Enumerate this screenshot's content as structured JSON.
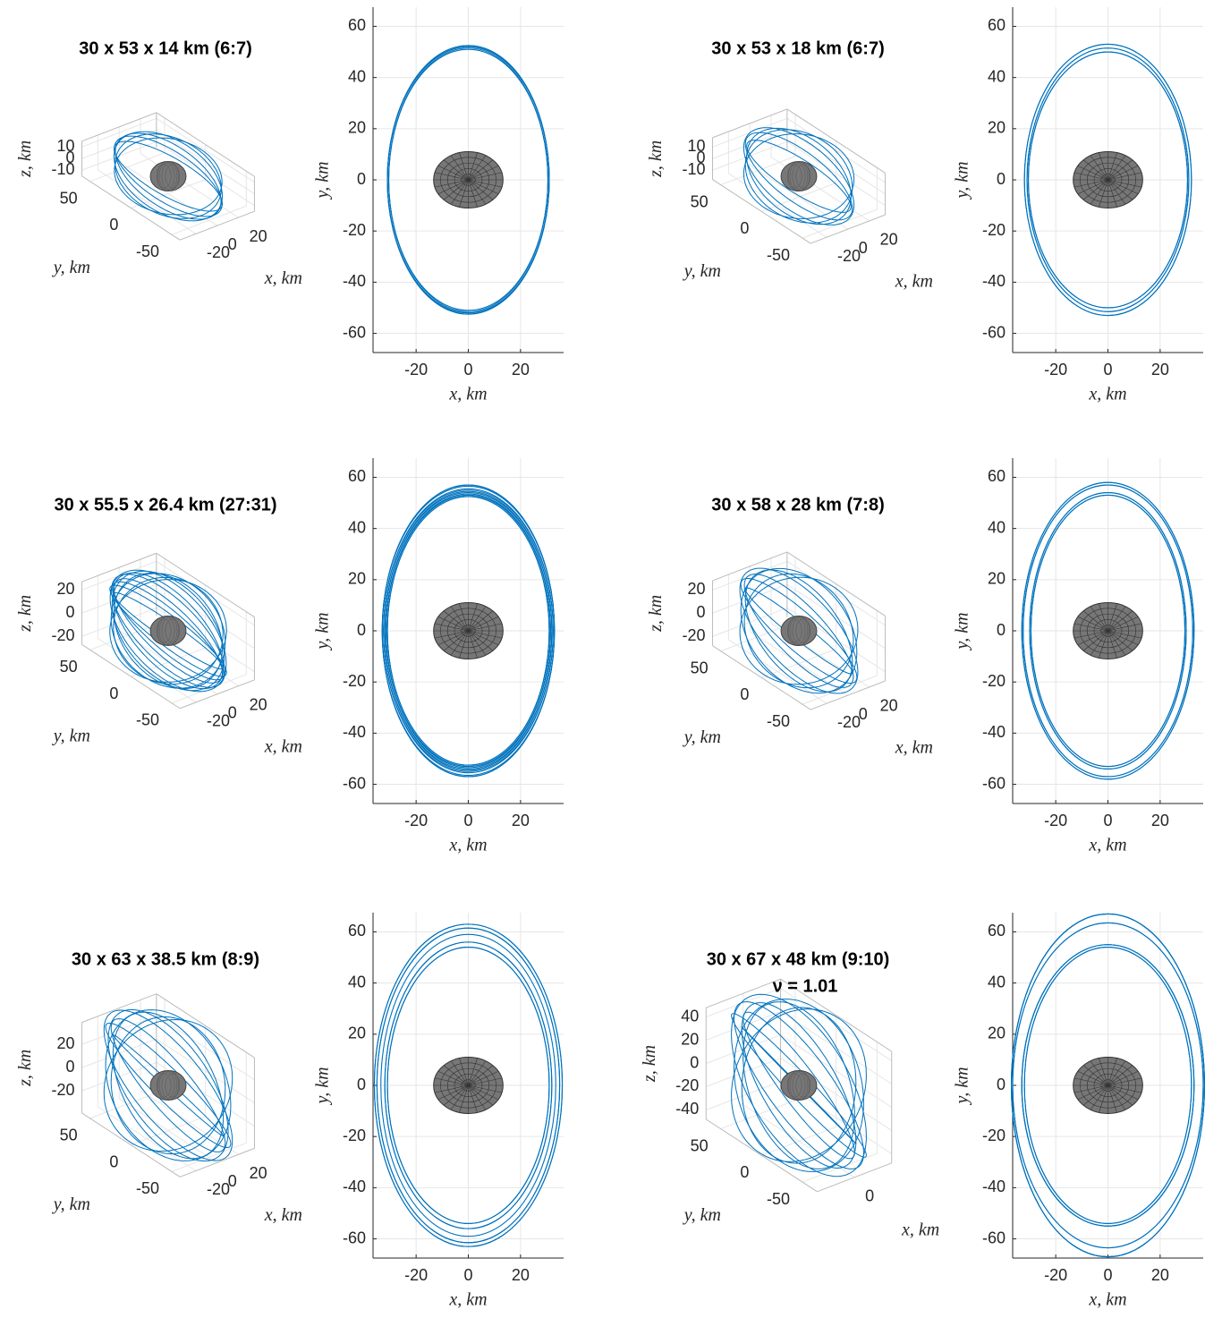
{
  "chart_data": [
    {
      "type": "orbit",
      "title": "30 x 53 x 14 km (6:7)",
      "orbit_color": "#0072bd",
      "body": {
        "a": 13.3,
        "b": 11,
        "color": "#777777"
      },
      "view3d": {
        "xlabel": "x, km",
        "ylabel": "y, km",
        "zlabel": "z, km",
        "xlim": [
          -35,
          35
        ],
        "ylim": [
          -60,
          60
        ],
        "zlim": [
          -15,
          15
        ],
        "xticks": [
          -20,
          0,
          20
        ],
        "yticks": [
          -50,
          0,
          50
        ],
        "zticks": [
          -10,
          0,
          10
        ]
      },
      "view2d": {
        "xlabel": "x, km",
        "ylabel": "y, km",
        "xlim": [
          -36.5,
          36.5
        ],
        "ylim": [
          -67.5,
          67.5
        ],
        "xticks": [
          -20,
          0,
          20
        ],
        "yticks": [
          -60,
          -40,
          -20,
          0,
          20,
          40,
          60
        ],
        "grid": true
      },
      "orbits": [
        {
          "a": 31,
          "b": 52,
          "zc": 12,
          "zs": 0
        },
        {
          "a": 30.5,
          "b": 51.5,
          "zc": 10.4,
          "zs": 6
        },
        {
          "a": 31,
          "b": 52.5,
          "zc": 6,
          "zs": 10.4
        },
        {
          "a": 30.5,
          "b": 51,
          "zc": 0,
          "zs": 12
        },
        {
          "a": 31,
          "b": 52,
          "zc": -6,
          "zs": 10.4
        },
        {
          "a": 31,
          "b": 52.5,
          "zc": -10.4,
          "zs": 6
        }
      ]
    },
    {
      "type": "orbit",
      "title": "30 x 53 x 18 km (6:7)",
      "orbit_color": "#0072bd",
      "body": {
        "a": 13.3,
        "b": 11,
        "color": "#777777"
      },
      "view3d": {
        "xlabel": "x, km",
        "ylabel": "y, km",
        "zlabel": "z, km",
        "xlim": [
          -35,
          35
        ],
        "ylim": [
          -60,
          60
        ],
        "zlim": [
          -18,
          18
        ],
        "xticks": [
          -20,
          0,
          20
        ],
        "yticks": [
          -50,
          0,
          50
        ],
        "zticks": [
          -10,
          0,
          10
        ]
      },
      "view2d": {
        "xlabel": "x, km",
        "ylabel": "y, km",
        "xlim": [
          -36.5,
          36.5
        ],
        "ylim": [
          -67.5,
          67.5
        ],
        "xticks": [
          -20,
          0,
          20
        ],
        "yticks": [
          -60,
          -40,
          -20,
          0,
          20,
          40,
          60
        ],
        "grid": true
      },
      "orbits": [
        {
          "a": 32,
          "b": 53,
          "zc": 16,
          "zs": 0
        },
        {
          "a": 31,
          "b": 51.5,
          "zc": 13.9,
          "zs": 8
        },
        {
          "a": 30.5,
          "b": 50,
          "zc": 8,
          "zs": 13.9
        },
        {
          "a": 32,
          "b": 53,
          "zc": 0,
          "zs": 16
        },
        {
          "a": 31,
          "b": 51.5,
          "zc": -8,
          "zs": 13.9
        },
        {
          "a": 30.5,
          "b": 50,
          "zc": -13.9,
          "zs": 8
        }
      ]
    },
    {
      "type": "orbit",
      "title": "30 x 55.5 x 26.4 km (27:31)",
      "orbit_color": "#0072bd",
      "body": {
        "a": 13.3,
        "b": 11,
        "color": "#777777"
      },
      "view3d": {
        "xlabel": "x, km",
        "ylabel": "y, km",
        "zlabel": "z, km",
        "xlim": [
          -35,
          35
        ],
        "ylim": [
          -60,
          60
        ],
        "zlim": [
          -27,
          27
        ],
        "xticks": [
          -20,
          0,
          20
        ],
        "yticks": [
          -50,
          0,
          50
        ],
        "zticks": [
          -20,
          0,
          20
        ]
      },
      "view2d": {
        "xlabel": "x, km",
        "ylabel": "y, km",
        "xlim": [
          -36.5,
          36.5
        ],
        "ylim": [
          -67.5,
          67.5
        ],
        "xticks": [
          -20,
          0,
          20
        ],
        "yticks": [
          -60,
          -40,
          -20,
          0,
          20,
          40,
          60
        ],
        "grid": true
      },
      "orbits": [
        {
          "a": 33,
          "b": 57,
          "zc": 24,
          "zs": 0
        },
        {
          "a": 31.5,
          "b": 53,
          "zc": 23.2,
          "zs": 6.2
        },
        {
          "a": 32.5,
          "b": 55.5,
          "zc": 20.8,
          "zs": 12
        },
        {
          "a": 31,
          "b": 52.5,
          "zc": 17,
          "zs": 17
        },
        {
          "a": 32,
          "b": 54.5,
          "zc": 12,
          "zs": 20.8
        },
        {
          "a": 33,
          "b": 56.5,
          "zc": 6.2,
          "zs": 23.2
        },
        {
          "a": 31.5,
          "b": 53.5,
          "zc": 0,
          "zs": 24
        },
        {
          "a": 32.5,
          "b": 55,
          "zc": -6.2,
          "zs": 23.2
        },
        {
          "a": 31,
          "b": 52.5,
          "zc": -12,
          "zs": 20.8
        },
        {
          "a": 32,
          "b": 54,
          "zc": -17,
          "zs": 17
        },
        {
          "a": 33,
          "b": 57,
          "zc": -20.8,
          "zs": 12
        },
        {
          "a": 31.5,
          "b": 53,
          "zc": -23.2,
          "zs": 6.2
        }
      ]
    },
    {
      "type": "orbit",
      "title": "30 x 58 x 28 km (7:8)",
      "orbit_color": "#0072bd",
      "body": {
        "a": 13.3,
        "b": 11,
        "color": "#777777"
      },
      "view3d": {
        "xlabel": "x, km",
        "ylabel": "y, km",
        "zlabel": "z, km",
        "xlim": [
          -35,
          35
        ],
        "ylim": [
          -60,
          60
        ],
        "zlim": [
          -28,
          28
        ],
        "xticks": [
          -20,
          0,
          20
        ],
        "yticks": [
          -50,
          0,
          50
        ],
        "zticks": [
          -20,
          0,
          20
        ]
      },
      "view2d": {
        "xlabel": "x, km",
        "ylabel": "y, km",
        "xlim": [
          -36.5,
          36.5
        ],
        "ylim": [
          -67.5,
          67.5
        ],
        "xticks": [
          -20,
          0,
          20
        ],
        "yticks": [
          -60,
          -40,
          -20,
          0,
          20,
          40,
          60
        ],
        "grid": true
      },
      "orbits": [
        {
          "a": 33,
          "b": 58,
          "zc": 26,
          "zs": 0
        },
        {
          "a": 30,
          "b": 54,
          "zc": 24,
          "zs": 10
        },
        {
          "a": 32.5,
          "b": 57,
          "zc": 18.4,
          "zs": 18.4
        },
        {
          "a": 29.5,
          "b": 53,
          "zc": 10,
          "zs": 24
        },
        {
          "a": 33,
          "b": 58,
          "zc": 0,
          "zs": 26
        },
        {
          "a": 30,
          "b": 54,
          "zc": -10,
          "zs": 24
        },
        {
          "a": 32.5,
          "b": 57,
          "zc": -18.4,
          "zs": 18.4
        },
        {
          "a": 29.5,
          "b": 53,
          "zc": -24,
          "zs": 10
        }
      ]
    },
    {
      "type": "orbit",
      "title": "30 x 63 x 38.5 km (8:9)",
      "orbit_color": "#0072bd",
      "body": {
        "a": 13.3,
        "b": 11,
        "color": "#777777"
      },
      "view3d": {
        "xlabel": "x, km",
        "ylabel": "y, km",
        "zlabel": "z, km",
        "xlim": [
          -35,
          35
        ],
        "ylim": [
          -60,
          60
        ],
        "zlim": [
          -39,
          39
        ],
        "xticks": [
          -20,
          0,
          20
        ],
        "yticks": [
          -50,
          0,
          50
        ],
        "zticks": [
          -20,
          0,
          20
        ]
      },
      "view2d": {
        "xlabel": "x, km",
        "ylabel": "y, km",
        "xlim": [
          -36.5,
          36.5
        ],
        "ylim": [
          -67.5,
          67.5
        ],
        "xticks": [
          -20,
          0,
          20
        ],
        "yticks": [
          -60,
          -40,
          -20,
          0,
          20,
          40,
          60
        ],
        "grid": true
      },
      "orbits": [
        {
          "a": 36,
          "b": 63,
          "zc": 36,
          "zs": 0
        },
        {
          "a": 32,
          "b": 56,
          "zc": 33.8,
          "zs": 12.3
        },
        {
          "a": 35,
          "b": 61.5,
          "zc": 27.6,
          "zs": 23.1
        },
        {
          "a": 31,
          "b": 54,
          "zc": 18,
          "zs": 31.2
        },
        {
          "a": 33.5,
          "b": 59,
          "zc": 6.3,
          "zs": 35.5
        },
        {
          "a": 36,
          "b": 63,
          "zc": -6.3,
          "zs": 35.5
        },
        {
          "a": 32,
          "b": 56,
          "zc": -18,
          "zs": 31.2
        },
        {
          "a": 35,
          "b": 61.5,
          "zc": -27.6,
          "zs": 23.1
        },
        {
          "a": 31,
          "b": 54,
          "zc": -33.8,
          "zs": 12.3
        }
      ]
    },
    {
      "type": "orbit",
      "title": "30 x 67 x 48 km (9:10)",
      "subtitle": "ν = 1.01",
      "orbit_color": "#0072bd",
      "body": {
        "a": 13.3,
        "b": 11,
        "color": "#777777"
      },
      "view3d": {
        "xlabel": "x, km",
        "ylabel": "y, km",
        "zlabel": "z, km",
        "xlim": [
          -35,
          35
        ],
        "ylim": [
          -68,
          68
        ],
        "zlim": [
          -48,
          48
        ],
        "xticks": [
          0
        ],
        "yticks": [
          -50,
          0,
          50
        ],
        "zticks": [
          -40,
          -20,
          0,
          20,
          40
        ]
      },
      "view2d": {
        "xlabel": "x, km",
        "ylabel": "y, km",
        "xlim": [
          -36.5,
          36.5
        ],
        "ylim": [
          -67.5,
          67.5
        ],
        "xticks": [
          -20,
          0,
          20
        ],
        "yticks": [
          -60,
          -40,
          -20,
          0,
          20,
          40,
          60
        ],
        "grid": true
      },
      "orbits": [
        {
          "a": 37,
          "b": 67,
          "zc": 45,
          "zs": 0
        },
        {
          "a": 33,
          "b": 55,
          "zc": 42.8,
          "zs": 13.9
        },
        {
          "a": 36.5,
          "b": 63.5,
          "zc": 36.4,
          "zs": 26.5
        },
        {
          "a": 32,
          "b": 54,
          "zc": 26.5,
          "zs": 36.4
        },
        {
          "a": 37,
          "b": 67,
          "zc": 13.9,
          "zs": 42.8
        },
        {
          "a": 33,
          "b": 55,
          "zc": 0,
          "zs": 45
        },
        {
          "a": 36.5,
          "b": 63.5,
          "zc": -13.9,
          "zs": 42.8
        },
        {
          "a": 32,
          "b": 54,
          "zc": -26.5,
          "zs": 36.4
        },
        {
          "a": 37,
          "b": 67,
          "zc": -36.4,
          "zs": 26.5
        },
        {
          "a": 33,
          "b": 55,
          "zc": -42.8,
          "zs": 13.9
        }
      ]
    }
  ]
}
